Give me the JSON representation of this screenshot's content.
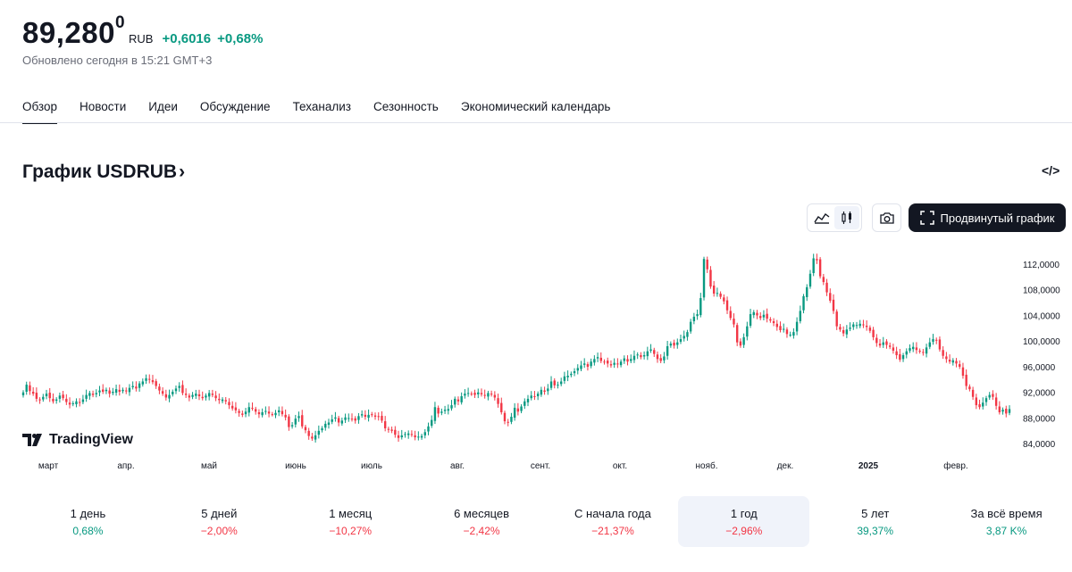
{
  "quote": {
    "price": "89,280",
    "price_sup": "0",
    "currency": "RUB",
    "change": "+0,6016",
    "change_pct": "+0,68%",
    "updated": "Обновлено сегодня в 15:21 GMT+3"
  },
  "tabs": [
    "Обзор",
    "Новости",
    "Идеи",
    "Обсуждение",
    "Теханализ",
    "Сезонность",
    "Экономический календарь"
  ],
  "section": {
    "title": "График USDRUB",
    "arrow": "›",
    "embed": "</>"
  },
  "toolbar": {
    "advanced_label": "Продвинутый график"
  },
  "branding": {
    "logo_text": "TradingView"
  },
  "colors": {
    "up": "#089981",
    "down": "#f23645"
  },
  "chart_data": {
    "type": "candlestick",
    "x_labels": [
      "март",
      "апр.",
      "май",
      "июнь",
      "июль",
      "авг.",
      "сент.",
      "окт.",
      "нояб.",
      "дек.",
      "2025",
      "февр."
    ],
    "y_ticks": [
      "112,0000",
      "108,0000",
      "104,0000",
      "100,0000",
      "96,0000",
      "92,0000",
      "88,0000",
      "84,0000"
    ],
    "ylim": [
      82.5,
      114.5
    ],
    "close": [
      92.0,
      93.2,
      92.2,
      91.8,
      91.0,
      90.8,
      91.3,
      91.8,
      91.1,
      90.6,
      90.9,
      91.5,
      91.1,
      90.5,
      90.1,
      90.3,
      90.6,
      90.4,
      90.9,
      91.6,
      91.9,
      91.6,
      91.9,
      92.3,
      92.1,
      92.4,
      91.8,
      92.1,
      92.5,
      92.1,
      92.4,
      92.2,
      92.7,
      93.0,
      92.6,
      93.4,
      93.7,
      94.2,
      94.0,
      93.6,
      93.0,
      92.3,
      91.8,
      91.2,
      91.6,
      92.1,
      92.6,
      93.0,
      91.9,
      91.6,
      91.2,
      91.6,
      91.8,
      91.4,
      91.1,
      91.5,
      91.9,
      91.6,
      91.1,
      90.8,
      90.9,
      90.6,
      90.0,
      89.5,
      89.2,
      88.8,
      88.5,
      89.0,
      89.7,
      89.5,
      89.0,
      88.6,
      88.9,
      89.1,
      88.7,
      88.6,
      88.8,
      89.2,
      88.6,
      88.1,
      86.6,
      86.9,
      87.9,
      88.3,
      86.7,
      86.1,
      85.2,
      84.8,
      85.3,
      86.0,
      86.4,
      87.1,
      87.3,
      87.8,
      88.1,
      87.3,
      87.6,
      88.1,
      88.0,
      87.8,
      87.6,
      88.3,
      88.6,
      88.2,
      88.5,
      88.5,
      88.2,
      88.2,
      87.6,
      86.4,
      86.3,
      86.0,
      85.4,
      84.9,
      85.3,
      85.5,
      85.6,
      85.4,
      85.0,
      85.1,
      85.2,
      85.8,
      86.7,
      87.7,
      89.7,
      88.7,
      89.0,
      89.3,
      89.4,
      90.0,
      91.0,
      90.6,
      91.4,
      91.8,
      91.9,
      91.8,
      91.6,
      92.0,
      91.7,
      91.5,
      91.9,
      91.7,
      91.2,
      90.2,
      88.9,
      87.5,
      87.3,
      88.2,
      89.6,
      89.0,
      89.8,
      90.6,
      91.0,
      91.5,
      91.3,
      91.8,
      92.4,
      92.1,
      92.6,
      93.7,
      93.1,
      93.2,
      93.7,
      94.5,
      94.6,
      94.9,
      95.3,
      95.8,
      96.2,
      96.5,
      96.0,
      96.8,
      97.2,
      97.5,
      96.9,
      96.8,
      96.5,
      96.2,
      96.6,
      96.4,
      96.8,
      97.3,
      96.8,
      97.2,
      97.7,
      97.9,
      97.5,
      97.8,
      98.4,
      98.7,
      98.0,
      97.2,
      96.9,
      97.6,
      99.2,
      99.6,
      99.3,
      99.8,
      100.3,
      100.8,
      101.4,
      103.0,
      103.8,
      104.2,
      106.7,
      112.8,
      111.2,
      108.5,
      107.4,
      107.5,
      106.9,
      106.2,
      104.8,
      103.6,
      102.6,
      99.8,
      99.3,
      100.6,
      102.3,
      104.2,
      104.5,
      104.0,
      103.6,
      104.1,
      103.5,
      103.2,
      102.8,
      102.2,
      101.7,
      101.9,
      101.1,
      101.0,
      101.4,
      103.0,
      104.7,
      107.0,
      108.4,
      110.5,
      112.9,
      112.6,
      110.1,
      109.2,
      107.6,
      106.3,
      104.7,
      102.3,
      101.8,
      101.2,
      101.8,
      102.1,
      102.6,
      102.5,
      102.7,
      102.5,
      102.2,
      101.6,
      100.6,
      99.7,
      99.3,
      99.8,
      99.4,
      99.1,
      98.5,
      97.8,
      97.1,
      97.8,
      98.4,
      98.9,
      99.1,
      98.6,
      98.4,
      98.2,
      99.0,
      99.8,
      100.3,
      100.1,
      98.7,
      97.7,
      97.2,
      96.8,
      97.0,
      96.5,
      96.0,
      94.6,
      93.0,
      92.5,
      91.3,
      90.0,
      89.7,
      90.4,
      91.1,
      91.6,
      91.3,
      89.9,
      88.9,
      89.3,
      88.7,
      89.4
    ]
  },
  "periods": [
    {
      "label": "1 день",
      "value": "0,68%",
      "dir": "up"
    },
    {
      "label": "5 дней",
      "value": "−2,00%",
      "dir": "down"
    },
    {
      "label": "1 месяц",
      "value": "−10,27%",
      "dir": "down"
    },
    {
      "label": "6 месяцев",
      "value": "−2,42%",
      "dir": "down"
    },
    {
      "label": "С начала года",
      "value": "−21,37%",
      "dir": "down"
    },
    {
      "label": "1 год",
      "value": "−2,96%",
      "dir": "down",
      "active": true
    },
    {
      "label": "5 лет",
      "value": "39,37%",
      "dir": "up"
    },
    {
      "label": "За всё время",
      "value": "3,87 K%",
      "dir": "up"
    }
  ]
}
